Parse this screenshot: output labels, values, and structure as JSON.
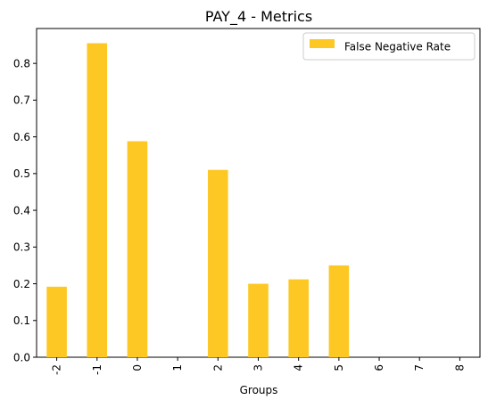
{
  "chart_data": {
    "type": "bar",
    "title": "PAY_4 - Metrics",
    "xlabel": "Groups",
    "ylabel": "",
    "categories": [
      "-2",
      "-1",
      "0",
      "1",
      "2",
      "3",
      "4",
      "5",
      "6",
      "7",
      "8"
    ],
    "series": [
      {
        "name": "False Negative Rate",
        "values": [
          0.192,
          0.855,
          0.588,
          0.0,
          0.51,
          0.2,
          0.212,
          0.25,
          0.0,
          0.0,
          0.0
        ],
        "color": "#fdc823"
      }
    ],
    "ylim": [
      0,
      0.895
    ],
    "yticks": [
      "0.0",
      "0.1",
      "0.2",
      "0.3",
      "0.4",
      "0.5",
      "0.6",
      "0.7",
      "0.8"
    ],
    "grid": false,
    "legend_position": "top-right"
  }
}
